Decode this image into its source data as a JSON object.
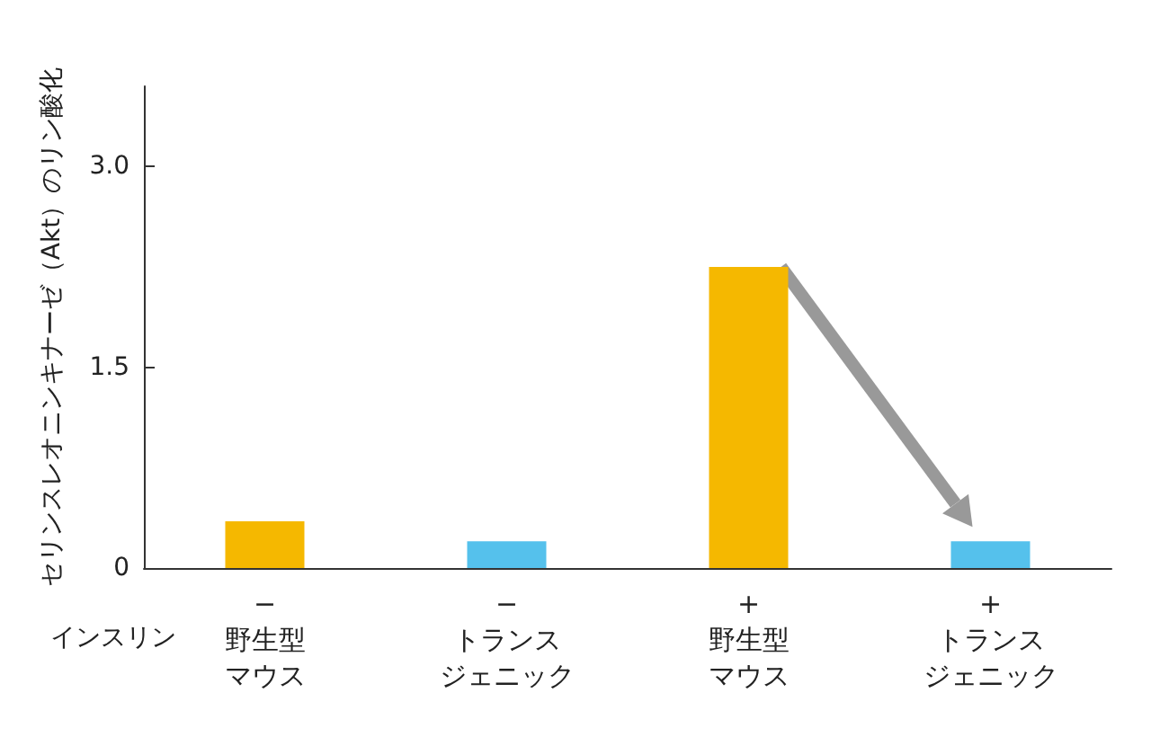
{
  "chart_data": {
    "type": "bar",
    "ylabel": "セリンスレオニンキナーゼ（Akt）のリン酸化",
    "categories": [
      "−\n野生型マウス",
      "−\nトランスジェニック",
      "+\n野生型マウス",
      "+\nトランスジェニック"
    ],
    "values": [
      0.35,
      0.2,
      2.25,
      0.2
    ],
    "colors": [
      "#f5b800",
      "#55c1ec",
      "#f5b800",
      "#55c1ec"
    ],
    "ylim": [
      0,
      3.6
    ],
    "yticks": [
      0,
      1.5,
      {
        "value": 3,
        "label": "3.0"
      }
    ],
    "annotations": [
      "インスリン"
    ],
    "grid": false
  }
}
